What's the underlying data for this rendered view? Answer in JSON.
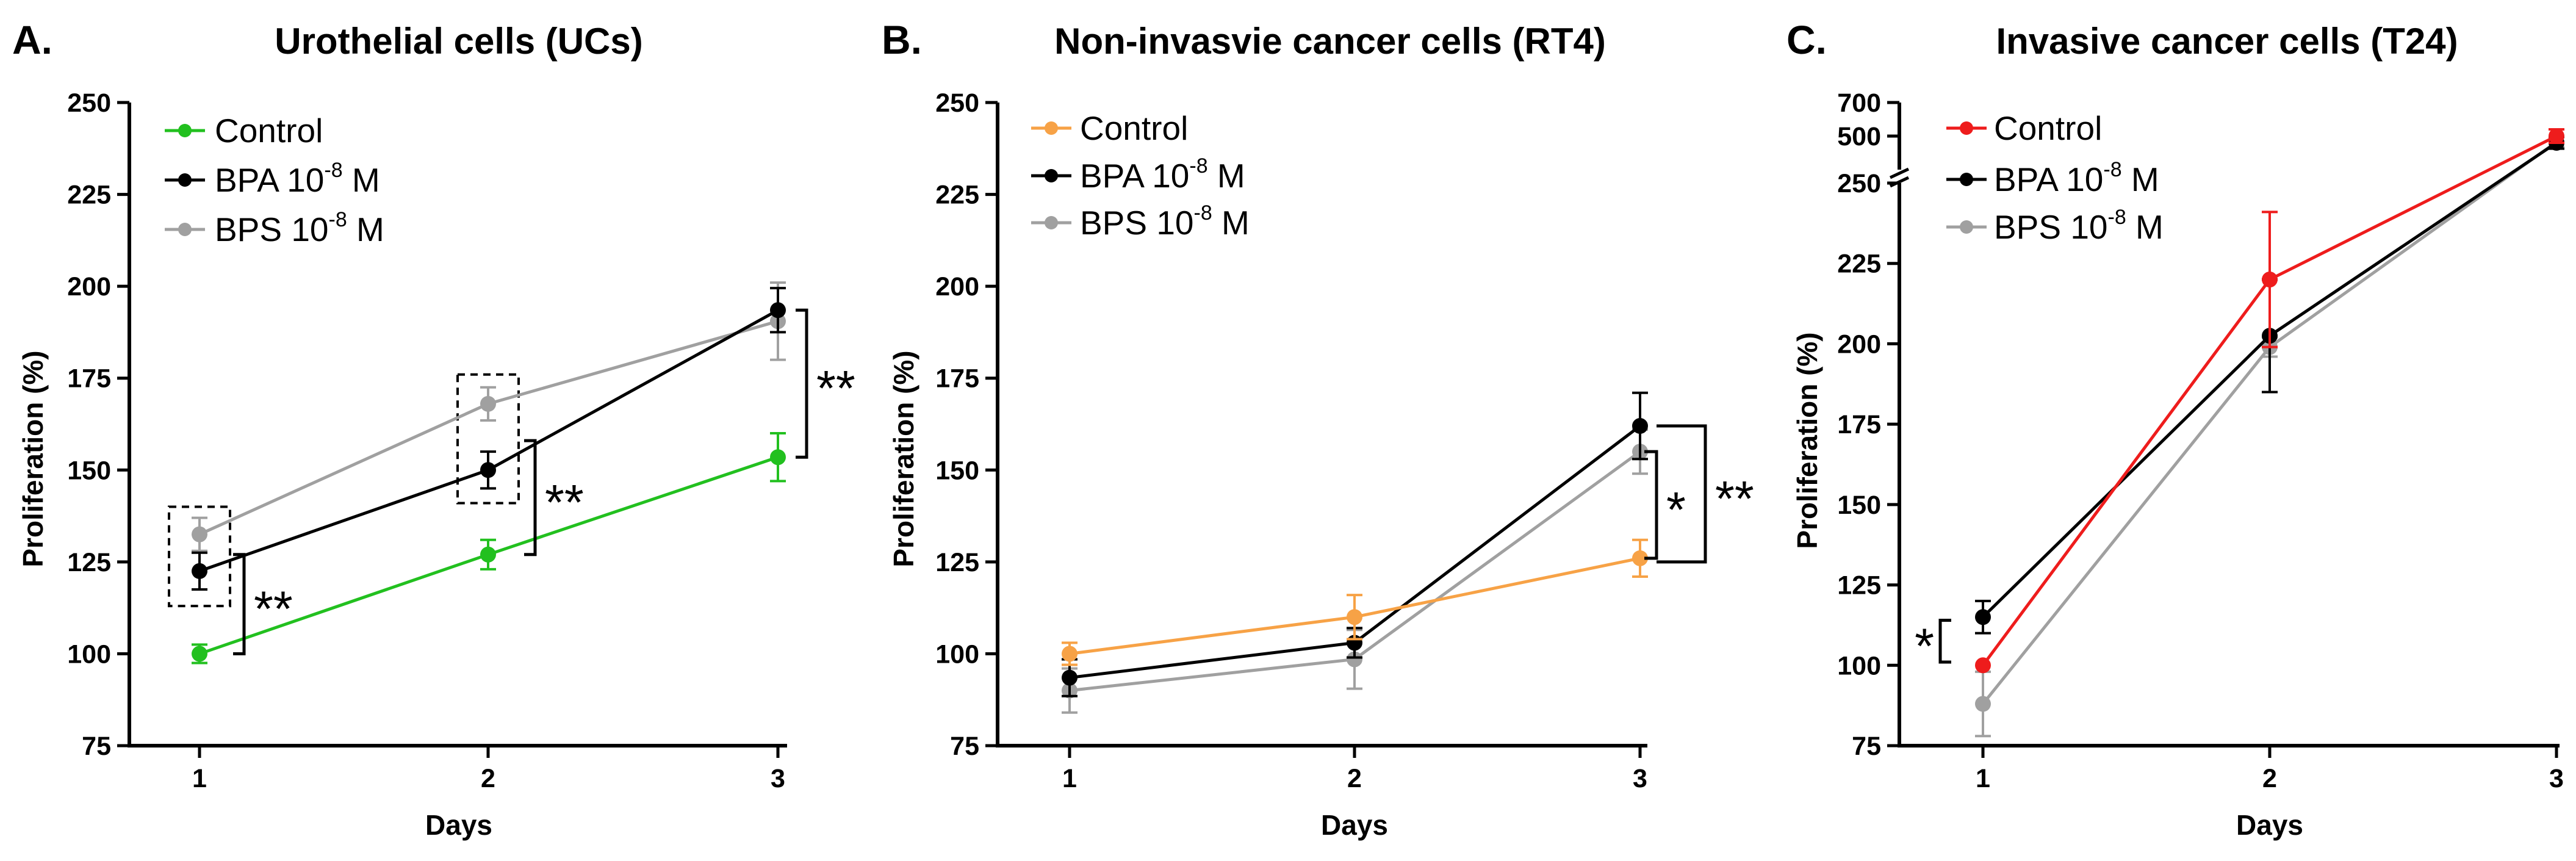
{
  "chart_data": [
    {
      "type": "line",
      "panel_letter": "A.",
      "title": "Urothelial cells (UCs)",
      "xlabel": "Days",
      "ylabel": "Proliferation (%)",
      "x": [
        1,
        2,
        3
      ],
      "x_tick_labels": [
        "1",
        "2",
        "3"
      ],
      "ylim": [
        75,
        250
      ],
      "y_ticks": [
        75,
        100,
        125,
        150,
        175,
        200,
        225,
        250
      ],
      "y_tick_labels": [
        "75",
        "100",
        "125",
        "150",
        "175",
        "200",
        "225",
        "250"
      ],
      "series": [
        {
          "name": "Control",
          "name_sup": "",
          "name_suffix": "",
          "color": "#22c01f",
          "values": [
            100,
            127,
            153.5
          ],
          "errors": [
            2.5,
            4,
            6.5
          ]
        },
        {
          "name": "BPA 10",
          "name_sup": "-8",
          "name_suffix": " M",
          "color": "#000000",
          "values": [
            122.5,
            150,
            193.5
          ],
          "errors": [
            5,
            5,
            6
          ]
        },
        {
          "name": "BPS 10",
          "name_sup": "-8",
          "name_suffix": " M",
          "color": "#a0a0a0",
          "values": [
            132.5,
            168,
            190.5
          ],
          "errors": [
            4.5,
            4.5,
            10.5
          ]
        }
      ],
      "significance": [
        {
          "label": "**",
          "x": 1,
          "y_low": 100,
          "y_high": 127
        },
        {
          "label": "**",
          "x": 2,
          "y_low": 127,
          "y_high": 158
        },
        {
          "label": "**",
          "x": 3,
          "y_low": 153.5,
          "y_high": 193.5
        }
      ],
      "highlight_boxes": [
        {
          "x": 1,
          "y_low": 113,
          "y_high": 140
        },
        {
          "x": 2,
          "y_low": 141,
          "y_high": 176
        }
      ]
    },
    {
      "type": "line",
      "panel_letter": "B.",
      "title": "Non-invasvie cancer cells (RT4)",
      "xlabel": "Days",
      "ylabel": "Proliferation (%)",
      "x": [
        1,
        2,
        3
      ],
      "x_tick_labels": [
        "1",
        "2",
        "3"
      ],
      "ylim": [
        75,
        250
      ],
      "y_ticks": [
        75,
        100,
        125,
        150,
        175,
        200,
        225,
        250
      ],
      "y_tick_labels": [
        "75",
        "100",
        "125",
        "150",
        "175",
        "200",
        "225",
        "250"
      ],
      "series": [
        {
          "name": "Control",
          "name_sup": "",
          "name_suffix": "",
          "color": "#f7a246",
          "values": [
            100,
            110,
            126
          ],
          "errors": [
            3,
            6,
            5
          ]
        },
        {
          "name": "BPA 10",
          "name_sup": "-8",
          "name_suffix": " M",
          "color": "#000000",
          "values": [
            93.5,
            103,
            162
          ],
          "errors": [
            5,
            4,
            9
          ]
        },
        {
          "name": "BPS 10",
          "name_sup": "-8",
          "name_suffix": " M",
          "color": "#a0a0a0",
          "values": [
            90,
            98.5,
            155
          ],
          "errors": [
            6,
            8,
            6
          ]
        }
      ],
      "significance": [
        {
          "label": "*",
          "x": 3,
          "y_low": 126,
          "y_high": 155
        },
        {
          "label": "**",
          "x": 3,
          "y_low": 125,
          "y_high": 162
        }
      ],
      "highlight_boxes": []
    },
    {
      "type": "line",
      "panel_letter": "C.",
      "title": "Invasive cancer cells (T24)",
      "xlabel": "Days",
      "ylabel": "Proliferation (%)",
      "x": [
        1,
        2,
        3
      ],
      "x_tick_labels": [
        "1",
        "2",
        "3"
      ],
      "ylim": [
        75,
        700
      ],
      "axis_break": [
        250,
        500
      ],
      "y_ticks": [
        75,
        100,
        125,
        150,
        175,
        200,
        225,
        250,
        500,
        700
      ],
      "y_tick_labels": [
        "75",
        "100",
        "125",
        "150",
        "175",
        "200",
        "225",
        "250",
        "500",
        "700"
      ],
      "series": [
        {
          "name": "Control",
          "name_sup": "",
          "name_suffix": "",
          "color": "#ee1c1c",
          "values": [
            100,
            220,
            500
          ],
          "errors": [
            0,
            21,
            40
          ]
        },
        {
          "name": "BPA 10",
          "name_sup": "-8",
          "name_suffix": " M",
          "color": "#000000",
          "values": [
            115,
            202.5,
            460
          ],
          "errors": [
            5,
            17.5,
            35
          ]
        },
        {
          "name": "BPS 10",
          "name_sup": "-8",
          "name_suffix": " M",
          "color": "#a0a0a0",
          "values": [
            88,
            199,
            465
          ],
          "errors": [
            10,
            3,
            30
          ]
        }
      ],
      "significance": [
        {
          "label": "*",
          "x": 1,
          "y_low": 101,
          "y_high": 114
        }
      ],
      "highlight_boxes": []
    }
  ]
}
